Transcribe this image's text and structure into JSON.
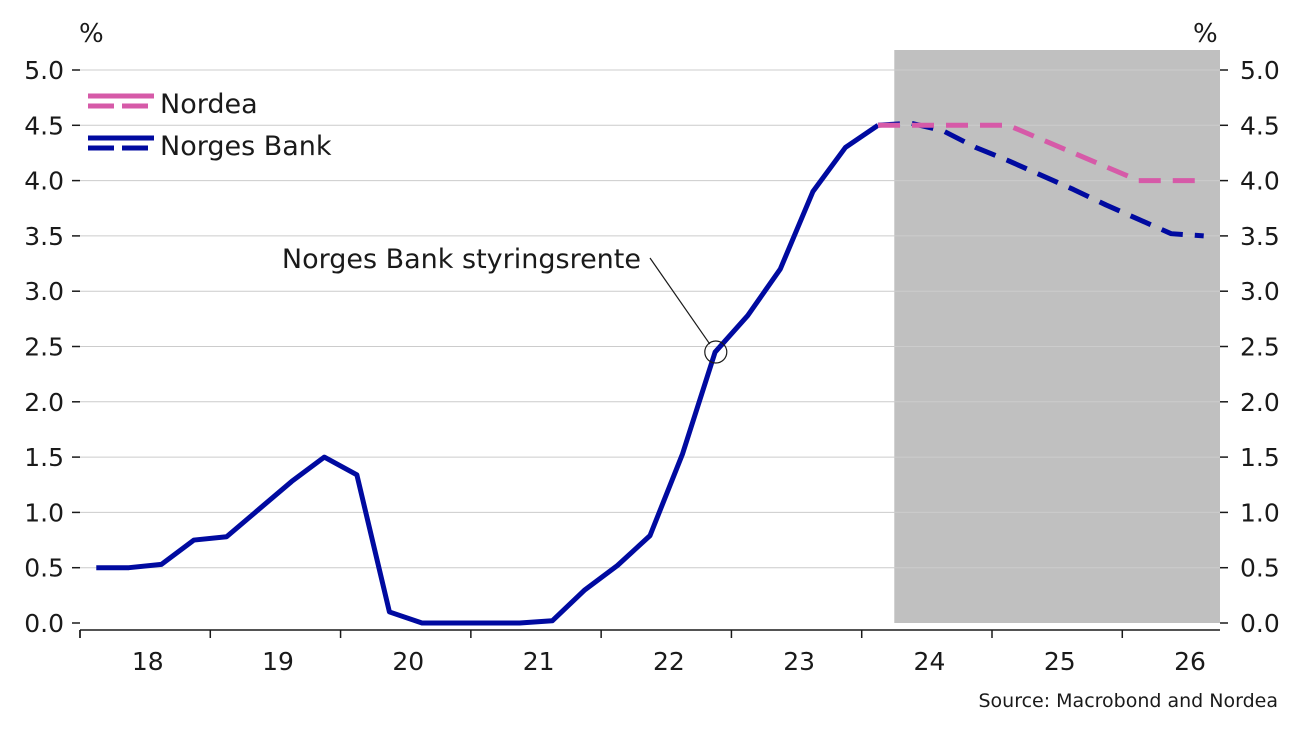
{
  "chart_data": {
    "type": "line",
    "title": "",
    "source": "Source: Macrobond and Nordea",
    "y_unit_left": "%",
    "y_unit_right": "%",
    "ylim": [
      0,
      5.0
    ],
    "y_ticks": [
      0.0,
      0.5,
      1.0,
      1.5,
      2.0,
      2.5,
      3.0,
      3.5,
      4.0,
      4.5,
      5.0
    ],
    "y_tick_labels": [
      "0.0",
      "0.5",
      "1.0",
      "1.5",
      "2.0",
      "2.5",
      "3.0",
      "3.5",
      "4.0",
      "4.5",
      "5.0"
    ],
    "x_range": [
      2017.5,
      2026.25
    ],
    "x_tick_labels": [
      {
        "label": "18",
        "year": 2018
      },
      {
        "label": "19",
        "year": 2019
      },
      {
        "label": "20",
        "year": 2020
      },
      {
        "label": "21",
        "year": 2021
      },
      {
        "label": "22",
        "year": 2022
      },
      {
        "label": "23",
        "year": 2023
      },
      {
        "label": "24",
        "year": 2024
      },
      {
        "label": "25",
        "year": 2025
      },
      {
        "label": "26",
        "year": 2026
      }
    ],
    "grid": true,
    "legend_position": "top-left",
    "forecast_shading": {
      "from": 2023.75,
      "to": 2026.25,
      "color": "#c0c0c0"
    },
    "annotation": {
      "text": "Norges Bank styringsrente",
      "x": 2022.38,
      "y": 2.45
    },
    "series": [
      {
        "name": "Nordea",
        "style": "dashed",
        "color": "#d65aa8",
        "x": [
          2023.625,
          2023.875,
          2024.125,
          2024.375,
          2024.625,
          2024.875,
          2025.125,
          2025.375,
          2025.625,
          2025.875,
          2026.125
        ],
        "y": [
          4.5,
          4.5,
          4.5,
          4.5,
          4.5,
          4.375,
          4.25,
          4.125,
          4.0,
          4.0,
          4.0
        ]
      },
      {
        "name": "Norges Bank",
        "style": "solid",
        "color": "#000aa0",
        "x": [
          2017.625,
          2017.875,
          2018.125,
          2018.375,
          2018.625,
          2018.875,
          2019.125,
          2019.375,
          2019.625,
          2019.875,
          2020.125,
          2020.375,
          2020.625,
          2020.875,
          2021.125,
          2021.375,
          2021.625,
          2021.875,
          2022.125,
          2022.375,
          2022.625,
          2022.875,
          2023.125,
          2023.375,
          2023.625
        ],
        "y": [
          0.5,
          0.5,
          0.53,
          0.75,
          0.78,
          1.03,
          1.28,
          1.5,
          1.34,
          0.1,
          0.0,
          0.0,
          0.0,
          0.0,
          0.02,
          0.3,
          0.52,
          0.79,
          1.53,
          2.45,
          2.78,
          3.2,
          3.9,
          4.3,
          4.5
        ]
      },
      {
        "name": "Norges Bank forecast",
        "style": "dashed",
        "color": "#000aa0",
        "legend": false,
        "x": [
          2023.625,
          2023.875,
          2024.125,
          2024.375,
          2024.625,
          2024.875,
          2025.125,
          2025.375,
          2025.625,
          2025.875,
          2026.125
        ],
        "y": [
          4.5,
          4.52,
          4.45,
          4.3,
          4.18,
          4.05,
          3.92,
          3.78,
          3.65,
          3.52,
          3.5
        ]
      }
    ],
    "colors": {
      "gridline": "#cccccc",
      "axis": "#1a1a1a",
      "shading": "#c0c0c0"
    }
  }
}
